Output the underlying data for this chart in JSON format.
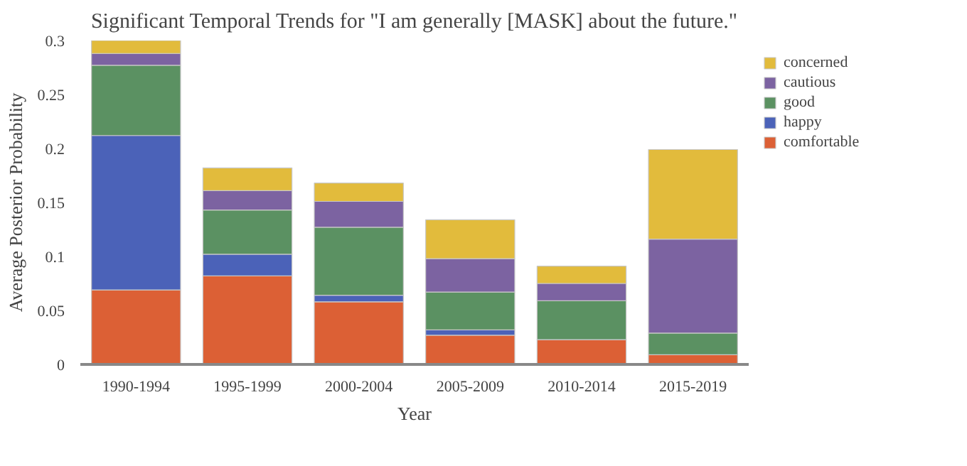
{
  "chart_data": {
    "type": "bar",
    "stacked": true,
    "title": "Significant Temporal Trends for \"I am generally [MASK] about the future.\"",
    "xlabel": "Year",
    "ylabel": "Average Posterior Probability",
    "categories": [
      "1990-1994",
      "1995-1999",
      "2000-2004",
      "2005-2009",
      "2010-2014",
      "2015-2019"
    ],
    "series": [
      {
        "name": "comfortable",
        "color": "#dc6035",
        "values": [
          0.069,
          0.082,
          0.058,
          0.027,
          0.023,
          0.009
        ]
      },
      {
        "name": "happy",
        "color": "#4b62b8",
        "values": [
          0.143,
          0.02,
          0.006,
          0.005,
          0,
          0
        ]
      },
      {
        "name": "good",
        "color": "#5b9162",
        "values": [
          0.065,
          0.041,
          0.063,
          0.035,
          0.036,
          0.02
        ]
      },
      {
        "name": "cautious",
        "color": "#7c63a1",
        "values": [
          0.011,
          0.018,
          0.024,
          0.031,
          0.016,
          0.087
        ]
      },
      {
        "name": "concerned",
        "color": "#e2bb3c",
        "values": [
          0.012,
          0.021,
          0.017,
          0.036,
          0.016,
          0.083
        ]
      }
    ],
    "ylim": [
      0,
      0.3
    ],
    "yticks": [
      0,
      0.05,
      0.1,
      0.15,
      0.2,
      0.25,
      0.3
    ],
    "grid": false,
    "legend": "top right"
  }
}
